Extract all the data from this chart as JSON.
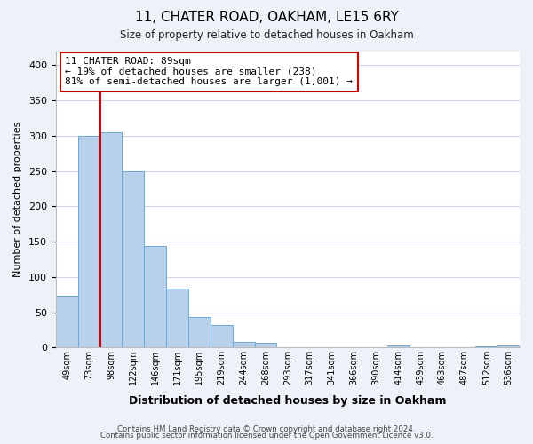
{
  "title1": "11, CHATER ROAD, OAKHAM, LE15 6RY",
  "title2": "Size of property relative to detached houses in Oakham",
  "xlabel": "Distribution of detached houses by size in Oakham",
  "ylabel": "Number of detached properties",
  "bar_labels": [
    "49sqm",
    "73sqm",
    "98sqm",
    "122sqm",
    "146sqm",
    "171sqm",
    "195sqm",
    "219sqm",
    "244sqm",
    "268sqm",
    "293sqm",
    "317sqm",
    "341sqm",
    "366sqm",
    "390sqm",
    "414sqm",
    "439sqm",
    "463sqm",
    "487sqm",
    "512sqm",
    "536sqm"
  ],
  "bar_values": [
    73,
    300,
    305,
    249,
    144,
    83,
    43,
    32,
    8,
    6,
    0,
    0,
    0,
    0,
    0,
    3,
    0,
    0,
    0,
    2,
    3
  ],
  "bar_color": "#b8d0ea",
  "bar_edge_color": "#6aaad4",
  "vline_x_index": 1.5,
  "vline_color": "#cc0000",
  "annotation_text": "11 CHATER ROAD: 89sqm\n← 19% of detached houses are smaller (238)\n81% of semi-detached houses are larger (1,001) →",
  "annotation_box_color": "#ffffff",
  "annotation_box_edge": "#cc0000",
  "ylim": [
    0,
    420
  ],
  "yticks": [
    0,
    50,
    100,
    150,
    200,
    250,
    300,
    350,
    400
  ],
  "footer1": "Contains HM Land Registry data © Crown copyright and database right 2024.",
  "footer2": "Contains public sector information licensed under the Open Government Licence v3.0.",
  "bg_color": "#eef2f8",
  "plot_bg_color": "#ffffff",
  "grid_color": "#cdd6e8"
}
